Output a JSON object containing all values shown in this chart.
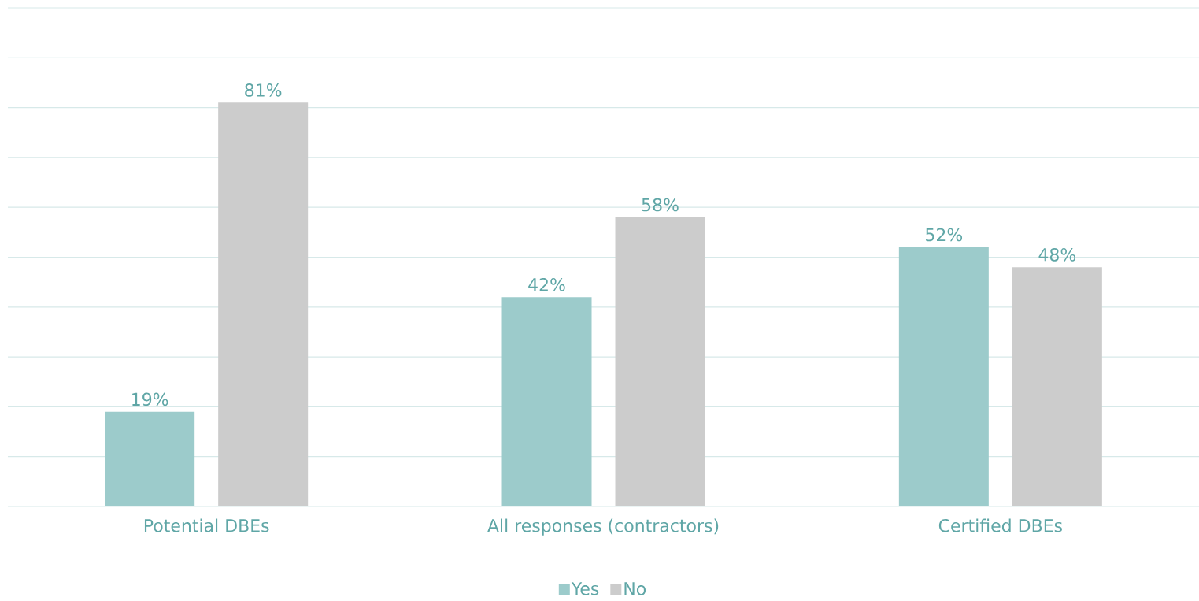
{
  "chart_data": {
    "type": "bar",
    "categories": [
      "Potential DBEs",
      "All responses (contractors)",
      "Certified DBEs"
    ],
    "series": [
      {
        "name": "Yes",
        "color": "#9ccbcb",
        "values": [
          19,
          42,
          52
        ],
        "value_labels": [
          "19%",
          "42%",
          "52%"
        ]
      },
      {
        "name": "No",
        "color": "#cccccc",
        "values": [
          81,
          58,
          48
        ],
        "value_labels": [
          "81%",
          "58%",
          "48%"
        ]
      }
    ],
    "ylim": [
      0,
      100
    ],
    "yticks": [
      {
        "value": 0,
        "label": null
      },
      {
        "value": 10,
        "label": null
      },
      {
        "value": 20,
        "label": null
      },
      {
        "value": 30,
        "label": null
      },
      {
        "value": 40,
        "label": null
      },
      {
        "value": 50,
        "label": null
      },
      {
        "value": 60,
        "label": null
      },
      {
        "value": 70,
        "label": null
      },
      {
        "value": 80,
        "label": null
      },
      {
        "value": 90,
        "label": null
      },
      {
        "value": 100,
        "label": null
      }
    ],
    "tick_labels": "x",
    "grid": "y",
    "legend": "bottom"
  }
}
